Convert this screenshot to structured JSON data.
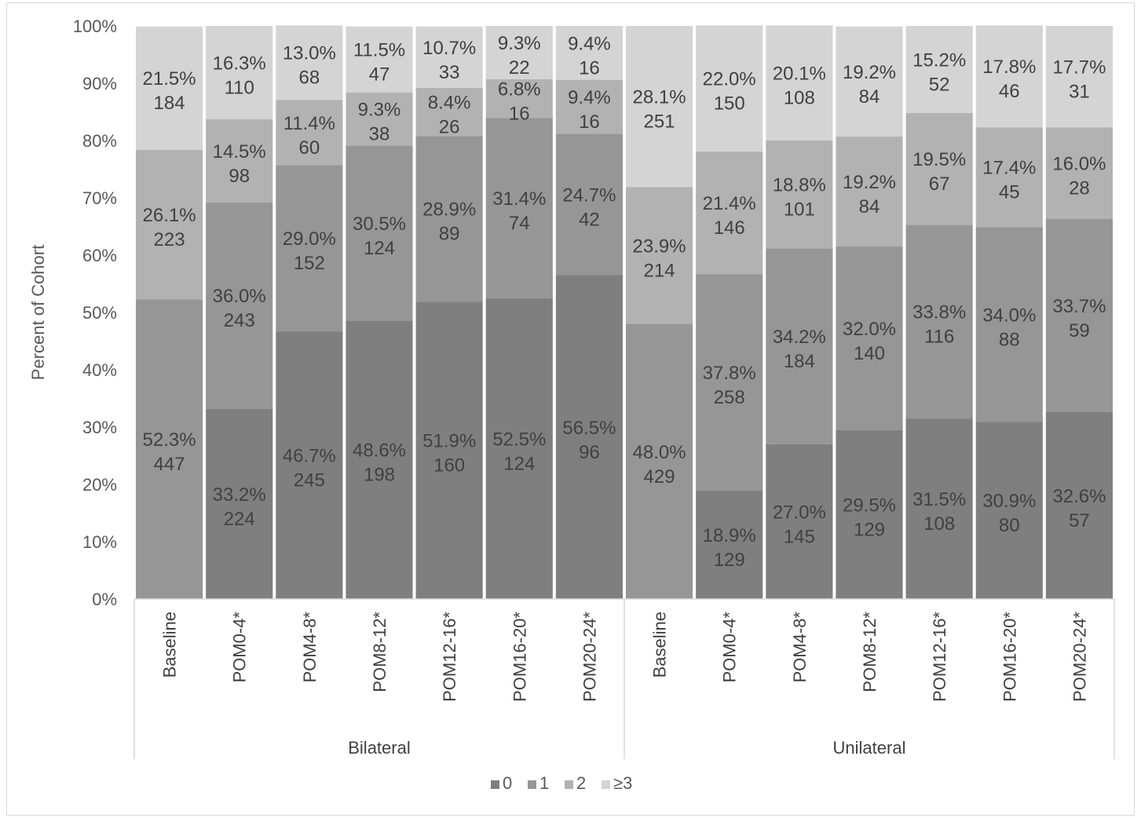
{
  "chart_data": {
    "type": "bar",
    "stacked": true,
    "stack_mode": "percent",
    "ylabel": "Percent of Cohort",
    "ylim": [
      0,
      100
    ],
    "y_ticks": [
      "0%",
      "10%",
      "20%",
      "30%",
      "40%",
      "50%",
      "60%",
      "70%",
      "80%",
      "90%",
      "100%"
    ],
    "legend_position": "bottom",
    "groups": [
      {
        "name": "Bilateral",
        "categories": [
          "Baseline",
          "POM0-4*",
          "POM4-8*",
          "POM8-12*",
          "POM12-16*",
          "POM16-20*",
          "POM20-24*"
        ]
      },
      {
        "name": "Unilateral",
        "categories": [
          "Baseline",
          "POM0-4*",
          "POM4-8*",
          "POM8-12*",
          "POM12-16*",
          "POM16-20*",
          "POM20-24*"
        ]
      }
    ],
    "categories": [
      "Baseline",
      "POM0-4*",
      "POM4-8*",
      "POM8-12*",
      "POM12-16*",
      "POM16-20*",
      "POM20-24*",
      "Baseline",
      "POM0-4*",
      "POM4-8*",
      "POM8-12*",
      "POM12-16*",
      "POM16-20*",
      "POM20-24*"
    ],
    "series": [
      {
        "name": "0",
        "color": "#7f7f7f",
        "values": [
          null,
          33.2,
          46.7,
          48.6,
          51.9,
          52.5,
          56.5,
          null,
          18.9,
          27.0,
          29.5,
          31.5,
          30.9,
          32.6
        ],
        "pct_labels": [
          "",
          "33.2%",
          "46.7%",
          "48.6%",
          "51.9%",
          "52.5%",
          "56.5%",
          "",
          "18.9%",
          "27.0%",
          "29.5%",
          "31.5%",
          "30.9%",
          "32.6%"
        ],
        "counts": [
          "",
          "224",
          "245",
          "198",
          "160",
          "124",
          "96",
          "",
          "129",
          "145",
          "129",
          "108",
          "80",
          "57"
        ]
      },
      {
        "name": "1",
        "color": "#969696",
        "values": [
          52.3,
          36.0,
          29.0,
          30.5,
          28.9,
          31.4,
          24.7,
          48.0,
          37.8,
          34.2,
          32.0,
          33.8,
          34.0,
          33.7
        ],
        "pct_labels": [
          "52.3%",
          "36.0%",
          "29.0%",
          "30.5%",
          "28.9%",
          "31.4%",
          "24.7%",
          "48.0%",
          "37.8%",
          "34.2%",
          "32.0%",
          "33.8%",
          "34.0%",
          "33.7%"
        ],
        "counts": [
          "447",
          "243",
          "152",
          "124",
          "89",
          "74",
          "42",
          "429",
          "258",
          "184",
          "140",
          "116",
          "88",
          "59"
        ]
      },
      {
        "name": "2",
        "color": "#b2b2b2",
        "values": [
          26.1,
          14.5,
          11.4,
          9.3,
          8.4,
          6.8,
          9.4,
          23.9,
          21.4,
          18.8,
          19.2,
          19.5,
          17.4,
          16.0
        ],
        "pct_labels": [
          "26.1%",
          "14.5%",
          "11.4%",
          "9.3%",
          "8.4%",
          "6.8%",
          "9.4%",
          "23.9%",
          "21.4%",
          "18.8%",
          "19.2%",
          "19.5%",
          "17.4%",
          "16.0%"
        ],
        "counts": [
          "223",
          "98",
          "60",
          "38",
          "26",
          "16",
          "16",
          "214",
          "146",
          "101",
          "84",
          "67",
          "45",
          "28"
        ]
      },
      {
        "name": "≥3",
        "color": "#d4d4d4",
        "values": [
          21.5,
          16.3,
          13.0,
          11.5,
          10.7,
          9.3,
          9.4,
          28.1,
          22.0,
          20.1,
          19.2,
          15.2,
          17.8,
          17.7
        ],
        "pct_labels": [
          "21.5%",
          "16.3%",
          "13.0%",
          "11.5%",
          "10.7%",
          "9.3%",
          "9.4%",
          "28.1%",
          "22.0%",
          "20.1%",
          "19.2%",
          "15.2%",
          "17.8%",
          "17.7%"
        ],
        "counts": [
          "184",
          "110",
          "68",
          "47",
          "33",
          "22",
          "16",
          "251",
          "150",
          "108",
          "84",
          "52",
          "46",
          "31"
        ]
      }
    ]
  }
}
